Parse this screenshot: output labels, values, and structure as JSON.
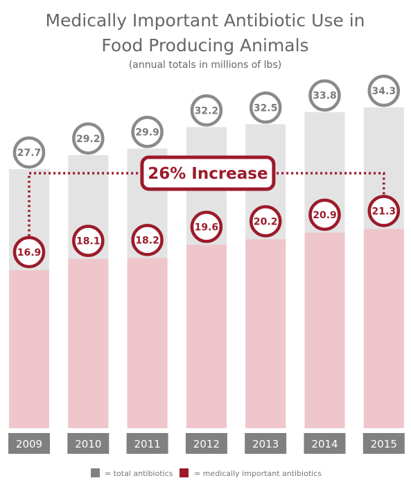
{
  "chart_data": {
    "type": "bar",
    "title_lines": [
      "Medically Important Antibiotic Use in",
      "Food Producing Animals"
    ],
    "subtitle": "(annual totals in millions of lbs)",
    "categories": [
      "2009",
      "2010",
      "2011",
      "2012",
      "2013",
      "2014",
      "2015"
    ],
    "series": [
      {
        "name": "total antibiotics",
        "values": [
          27.7,
          29.2,
          29.9,
          32.2,
          32.5,
          33.8,
          34.3
        ],
        "color": "#e3e3e3",
        "label_color": "#7a7a7a"
      },
      {
        "name": "medically important antibiotics",
        "values": [
          16.9,
          18.1,
          18.2,
          19.6,
          20.2,
          20.9,
          21.3
        ],
        "color": "#efc6cb",
        "label_color": "#9b1b2a"
      }
    ],
    "annotation": {
      "text": "26% Increase",
      "from": "2009",
      "to": "2015",
      "color": "#9b1b2a"
    },
    "legend": [
      {
        "text": "= total antibiotics",
        "swatch": "#808080"
      },
      {
        "text": "= medically important antibiotics",
        "swatch": "#9b1b2a"
      }
    ],
    "legend_position": "bottom",
    "grid": false,
    "ylim": [
      0,
      34.3
    ]
  }
}
